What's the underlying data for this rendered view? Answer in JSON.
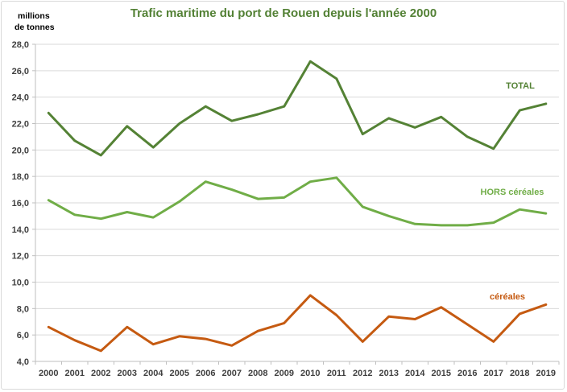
{
  "chart_data": {
    "type": "line",
    "title": "Trafic maritime du port de Rouen depuis l'année 2000",
    "ylabel_line1": "millions",
    "ylabel_line2": "de tonnes",
    "ylim": [
      4.0,
      28.0
    ],
    "yticks": [
      "4,0",
      "6,0",
      "8,0",
      "10,0",
      "12,0",
      "14,0",
      "16,0",
      "18,0",
      "20,0",
      "22,0",
      "24,0",
      "26,0",
      "28,0"
    ],
    "categories": [
      "2000",
      "2001",
      "2002",
      "2003",
      "2004",
      "2005",
      "2006",
      "2007",
      "2008",
      "2009",
      "2010",
      "2011",
      "2012",
      "2013",
      "2014",
      "2015",
      "2016",
      "2017",
      "2018",
      "2019"
    ],
    "grid": "horizontal",
    "series": [
      {
        "name": "TOTAL",
        "color": "#548235",
        "values": [
          22.8,
          20.7,
          19.6,
          21.8,
          20.2,
          22.0,
          23.3,
          22.2,
          22.7,
          23.3,
          26.7,
          25.4,
          21.2,
          22.4,
          21.7,
          22.5,
          21.0,
          20.1,
          23.0,
          23.5
        ]
      },
      {
        "name": "HORS céréales",
        "color": "#70ad47",
        "values": [
          16.2,
          15.1,
          14.8,
          15.3,
          14.9,
          16.1,
          17.6,
          17.0,
          16.3,
          16.4,
          17.6,
          17.9,
          15.7,
          15.0,
          14.4,
          14.3,
          14.3,
          14.5,
          15.5,
          15.2
        ]
      },
      {
        "name": "céréales",
        "color": "#c55a11",
        "values": [
          6.6,
          5.6,
          4.8,
          6.6,
          5.3,
          5.9,
          5.7,
          5.2,
          6.3,
          6.9,
          9.0,
          7.5,
          5.5,
          7.4,
          7.2,
          8.1,
          6.8,
          5.5,
          7.6,
          8.3
        ]
      }
    ]
  }
}
